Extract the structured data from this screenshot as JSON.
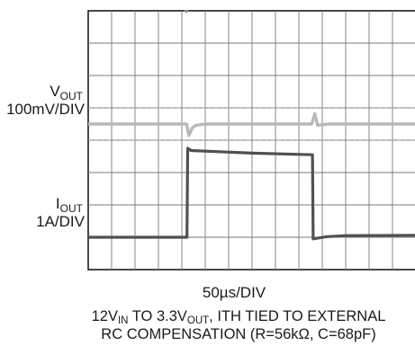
{
  "chart_data": {
    "type": "line",
    "traces": [
      {
        "name_main": "V",
        "name_sub": "OUT",
        "scale": "100mV/DIV",
        "color": "#b8b8b8",
        "samples": [
          [
            0,
            0
          ],
          [
            4.2,
            0
          ],
          [
            4.3,
            -0.35
          ],
          [
            4.45,
            -0.12
          ],
          [
            4.6,
            -0.04
          ],
          [
            5.0,
            0
          ],
          [
            9.55,
            0
          ],
          [
            9.68,
            0.32
          ],
          [
            9.8,
            -0.04
          ],
          [
            10.0,
            -0.02
          ],
          [
            10.3,
            0
          ],
          [
            14,
            0
          ]
        ]
      },
      {
        "name_main": "I",
        "name_sub": "OUT",
        "scale": "1A/DIV",
        "color": "#505050",
        "samples": [
          [
            0,
            0
          ],
          [
            4.22,
            0
          ],
          [
            4.25,
            2.75
          ],
          [
            4.4,
            2.68
          ],
          [
            7,
            2.6
          ],
          [
            9.58,
            2.55
          ],
          [
            9.61,
            -0.05
          ],
          [
            10.2,
            0.02
          ],
          [
            11,
            0.05
          ],
          [
            14,
            0.06
          ]
        ]
      }
    ],
    "divisions": {
      "x": 14,
      "y": 8
    },
    "grid": true,
    "grid_color": "#7a7a7a",
    "xlabel": "50µs/DIV"
  },
  "caption": {
    "line1": {
      "a": "12V",
      "a_sub": "IN",
      "b": " TO 3.3V",
      "b_sub": "OUT",
      "c": ", ITH TIED TO EXTERNAL"
    },
    "line2": "RC COMPENSATION (R=56kΩ, C=68pF)"
  }
}
